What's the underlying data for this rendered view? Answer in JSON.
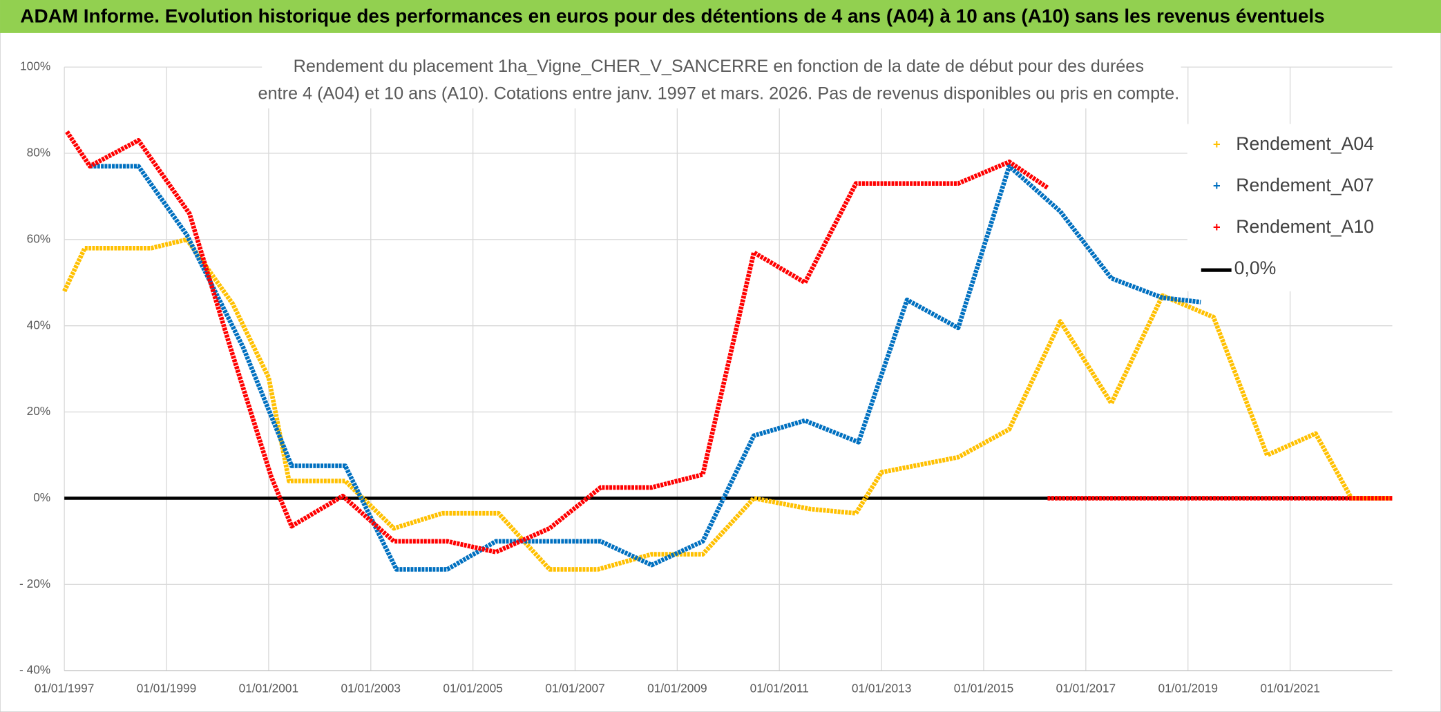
{
  "header": {
    "title": "ADAM Informe. Evolution historique des performances en euros pour des détentions de 4 ans (A04) à 10 ans (A10) sans les revenus éventuels"
  },
  "chart_data": {
    "type": "line",
    "title": [
      "Rendement du placement 1ha_Vigne_CHER_V_SANCERRE en fonction de la date de début pour des durées",
      "entre 4 (A04) et 10 ans (A10). Cotations entre janv. 1997 et mars. 2026. Pas de revenus disponibles ou pris en compte."
    ],
    "xlim": [
      1997,
      2023
    ],
    "xticks": [
      {
        "value": 1997,
        "label": "01/01/1997"
      },
      {
        "value": 1999,
        "label": "01/01/1999"
      },
      {
        "value": 2001,
        "label": "01/01/2001"
      },
      {
        "value": 2003,
        "label": "01/01/2003"
      },
      {
        "value": 2005,
        "label": "01/01/2005"
      },
      {
        "value": 2007,
        "label": "01/01/2007"
      },
      {
        "value": 2009,
        "label": "01/01/2009"
      },
      {
        "value": 2011,
        "label": "01/01/2011"
      },
      {
        "value": 2013,
        "label": "01/01/2013"
      },
      {
        "value": 2015,
        "label": "01/01/2015"
      },
      {
        "value": 2017,
        "label": "01/01/2017"
      },
      {
        "value": 2019,
        "label": "01/01/2019"
      },
      {
        "value": 2021,
        "label": "01/01/2021"
      }
    ],
    "ylim": [
      -40,
      100
    ],
    "yticks": [
      {
        "value": 100,
        "label": "100%"
      },
      {
        "value": 80,
        "label": "80%"
      },
      {
        "value": 60,
        "label": "60%"
      },
      {
        "value": 40,
        "label": "40%"
      },
      {
        "value": 20,
        "label": "20%"
      },
      {
        "value": 0,
        "label": "0%"
      },
      {
        "value": -20,
        "label": "- 20%"
      },
      {
        "value": -40,
        "label": "- 40%"
      }
    ],
    "grid": true,
    "legend": "upper right",
    "series": [
      {
        "name": "Rendement_A04",
        "color": "#FFC000",
        "x": [
          1997,
          1997.4,
          1998.7,
          1999.4,
          2000.3,
          2001,
          2001.4,
          2002.5,
          2003.45,
          2004.4,
          2005.5,
          2006.5,
          2007.45,
          2008.5,
          2009.5,
          2010.5,
          2011.6,
          2012.5,
          2013,
          2014.5,
          2015.5,
          2016.5,
          2017.5,
          2018.5,
          2019.5,
          2020.55,
          2021.5,
          2022.2,
          2023
        ],
        "values": [
          48,
          58,
          58,
          60,
          45,
          28,
          4,
          4,
          -7,
          -3.5,
          -3.5,
          -16.5,
          -16.5,
          -13,
          -13,
          0,
          -2.5,
          -3.5,
          6,
          9.5,
          16,
          41,
          22,
          47,
          42,
          10,
          15,
          0,
          0
        ]
      },
      {
        "name": "Rendement_A07",
        "color": "#0070C0",
        "x": [
          1997.5,
          1998.45,
          1999.4,
          2000.5,
          2001.45,
          2002.5,
          2003.5,
          2004.5,
          2005.45,
          2007.5,
          2008.5,
          2009.5,
          2010.5,
          2011.5,
          2012.55,
          2013.5,
          2014.5,
          2015.5,
          2016.5,
          2017.5,
          2018.5,
          2019.25
        ],
        "values": [
          77,
          77,
          61,
          35,
          7.5,
          7.5,
          -16.5,
          -16.5,
          -10,
          -10,
          -15.5,
          -10,
          14.5,
          18,
          13,
          46,
          39.5,
          77,
          66.5,
          51,
          46.5,
          45.5
        ]
      },
      {
        "name": "Rendement_A10",
        "color": "#FF0000",
        "x": [
          1997.05,
          1997.5,
          1998.45,
          1999.45,
          2000.25,
          2001.05,
          2001.45,
          2002.45,
          2003.45,
          2004.5,
          2005.45,
          2006.5,
          2007.5,
          2008.5,
          2009.5,
          2010.5,
          2011.5,
          2012.5,
          2014.5,
          2015.5,
          2016.25,
          2016.25,
          2016.25,
          2023
        ],
        "values": [
          85,
          77,
          83,
          66,
          35,
          5,
          -6.5,
          0.5,
          -10,
          -10,
          -12.5,
          -7,
          2.5,
          2.5,
          5.5,
          57,
          50,
          73,
          73,
          78,
          72,
          null,
          0,
          0
        ]
      },
      {
        "name": "0,0%",
        "color": "#000000",
        "x": [
          1997,
          2023
        ],
        "values": [
          0,
          0
        ]
      }
    ]
  }
}
